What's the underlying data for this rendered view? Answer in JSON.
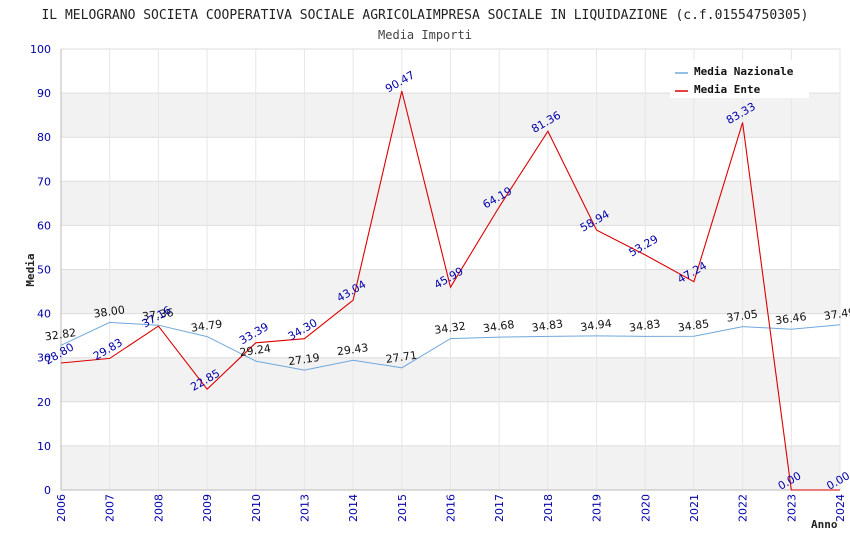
{
  "chart_data": {
    "type": "line",
    "title": "IL MELOGRANO SOCIETA COOPERATIVA SOCIALE AGRICOLAIMPRESA SOCIALE IN LIQUIDAZIONE (c.f.01554750305)",
    "subtitle": "Media Importi",
    "xlabel": "Anno",
    "ylabel": "Media",
    "ylim": [
      0,
      100
    ],
    "yticks": [
      "0",
      "10",
      "20",
      "30",
      "40",
      "50",
      "60",
      "70",
      "80",
      "90",
      "100"
    ],
    "categories": [
      "2006",
      "2007",
      "2008",
      "2009",
      "2010",
      "2013",
      "2014",
      "2015",
      "2016",
      "2017",
      "2018",
      "2019",
      "2020",
      "2021",
      "2022",
      "2023",
      "2024"
    ],
    "series": [
      {
        "name": "Media Nazionale",
        "color": "#6fa8dc",
        "values": [
          32.82,
          38.0,
          37.36,
          34.79,
          29.24,
          27.19,
          29.43,
          27.71,
          34.32,
          34.68,
          34.83,
          34.94,
          34.83,
          34.85,
          37.05,
          36.46,
          37.49
        ],
        "labels": [
          "32.82",
          "38.00",
          "37.36",
          "34.79",
          "29.24",
          "27.19",
          "29.43",
          "27.71",
          "34.32",
          "34.68",
          "34.83",
          "34.94",
          "34.83",
          "34.85",
          "37.05",
          "36.46",
          "37.49"
        ]
      },
      {
        "name": "Media Ente",
        "color": "#dd0000",
        "values": [
          28.8,
          29.83,
          37.16,
          22.85,
          33.39,
          34.3,
          43.04,
          90.47,
          45.99,
          64.19,
          81.36,
          58.94,
          53.29,
          47.24,
          83.33,
          0.0,
          0.0
        ],
        "labels": [
          "28.80",
          "29.83",
          "37.16",
          "22.85",
          "33.39",
          "34.30",
          "43.04",
          "90.47",
          "45.99",
          "64.19",
          "81.36",
          "58.94",
          "53.29",
          "47.24",
          "83.33",
          "0.00",
          "0.00"
        ]
      }
    ],
    "legend": [
      "Media Nazionale",
      "Media Ente"
    ],
    "legend_position": "top-right",
    "grid": true
  }
}
